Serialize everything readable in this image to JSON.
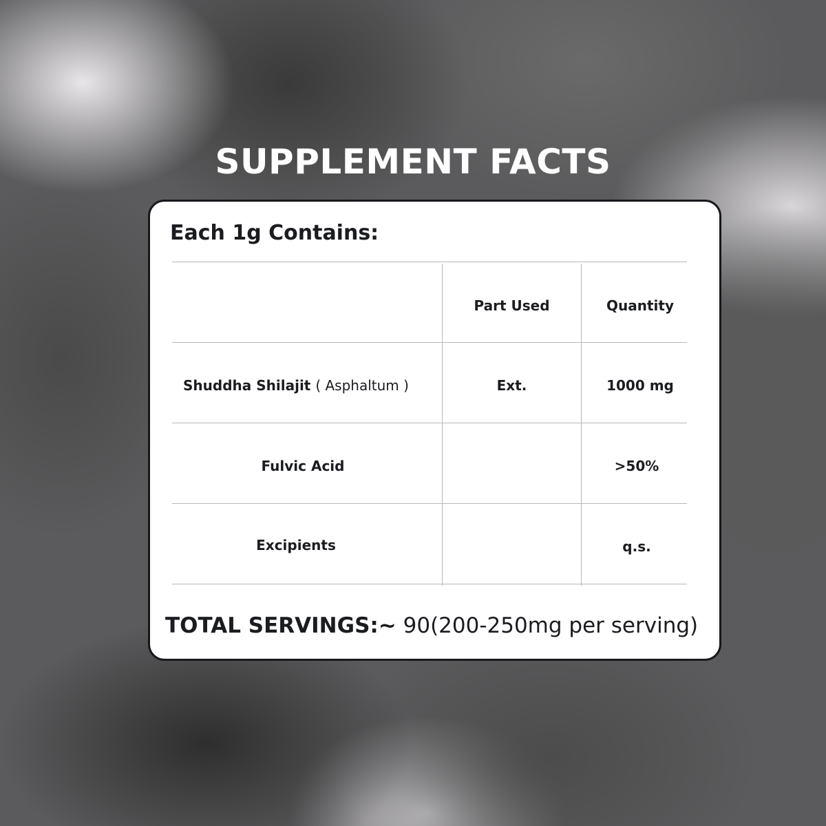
{
  "title": "SUPPLEMENT FACTS",
  "card": {
    "heading": "Each 1g Contains:",
    "table": {
      "headers": [
        "",
        "Part Used",
        "Quantity"
      ],
      "rows": [
        {
          "name": "Shuddha Shilajit",
          "name_note": "( Asphaltum )",
          "part": "Ext.",
          "quantity": "1000 mg"
        },
        {
          "name": "Fulvic Acid",
          "part": "",
          "quantity": ">50%"
        },
        {
          "name": "Excipients",
          "part": "",
          "quantity": "q.s."
        }
      ]
    },
    "total_label": "TOTAL SERVINGS:~",
    "total_value": " 90(200-250mg per serving)"
  }
}
